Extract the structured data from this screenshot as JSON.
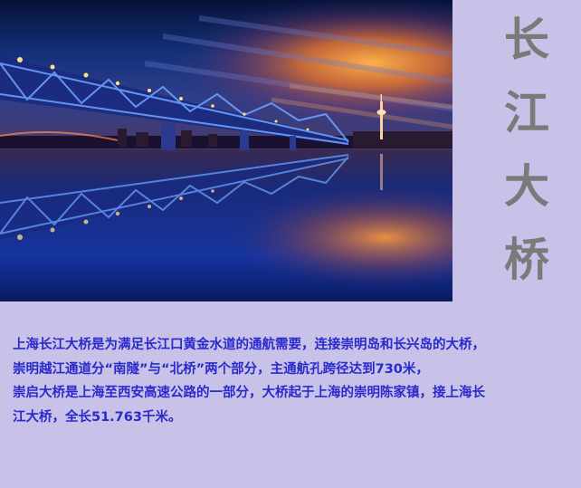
{
  "title_chars": [
    "长",
    "江",
    "大",
    "桥"
  ],
  "description_lines": [
    "上海长江大桥是为满足长江口黄金水道的通航需要，连接崇明岛和长兴岛的大桥，",
    "崇明越江通道分“南隧”与“北桥”两个部分，主通航孔跨径达到730米，",
    "崇启大桥是上海至西安高速公路的一部分，大桥起于上海的崇明陈家镇，接上海长",
    "江大桥，全长51.763千米。"
  ],
  "colors": {
    "background": "#c8c2e8",
    "title_text": "#7a7a7a",
    "body_text": "#2a2acc"
  },
  "photo": {
    "subject": "night view of bridge over river with reflection"
  }
}
